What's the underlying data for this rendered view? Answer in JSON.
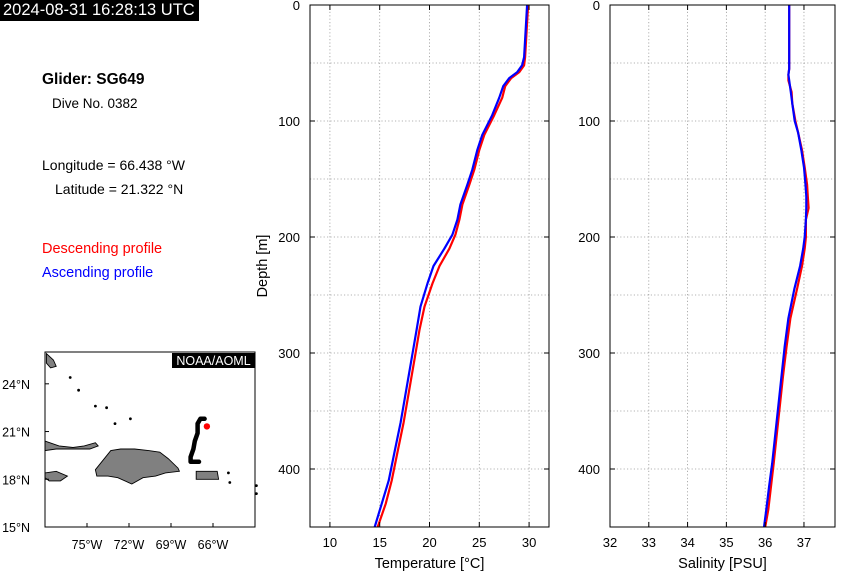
{
  "header": {
    "timestamp": "2024-08-31 16:28:13 UTC"
  },
  "info": {
    "glider": "Glider: SG649",
    "dive": "Dive No. 0382",
    "longitude": "Longitude = 66.438 °W",
    "latitude": "Latitude = 21.322 °N"
  },
  "legend": {
    "descending": {
      "label": "Descending profile",
      "color": "#ff0000"
    },
    "ascending": {
      "label": "Ascending profile",
      "color": "#0000ff"
    }
  },
  "map": {
    "badge": "NOAA/AOML",
    "lon_ticks": [
      "75°W",
      "72°W",
      "69°W",
      "66°W"
    ],
    "lat_ticks": [
      "24°N",
      "21°N",
      "18°N",
      "15°N"
    ],
    "lon_values": [
      -75,
      -72,
      -69,
      -66
    ],
    "lat_values": [
      24,
      21,
      18,
      15
    ],
    "lon_range": [
      -78,
      -63
    ],
    "lat_range": [
      15,
      26
    ],
    "land_color": "#808080",
    "track_color": "#000000",
    "track": [
      [
        -66.6,
        21.8
      ],
      [
        -66.9,
        21.8
      ],
      [
        -67.1,
        21.5
      ],
      [
        -67.1,
        20.9
      ],
      [
        -67.3,
        20.4
      ],
      [
        -67.4,
        19.9
      ],
      [
        -67.6,
        19.4
      ],
      [
        -67.6,
        19.1
      ],
      [
        -67.0,
        19.1
      ]
    ],
    "glider_position": [
      -66.438,
      21.322
    ],
    "position_color": "#ff0000"
  },
  "chart_data": [
    {
      "type": "line",
      "xlabel": "Temperature [°C]",
      "ylabel": "Depth [m]",
      "xlim": [
        8,
        32
      ],
      "ylim": [
        0,
        450
      ],
      "y_inverted": true,
      "xticks": [
        "10",
        "15",
        "20",
        "25",
        "30"
      ],
      "yticks": [
        "0",
        "100",
        "200",
        "300",
        "400"
      ],
      "grid": true,
      "series": [
        {
          "name": "Descending profile",
          "color": "#ff0000",
          "x": [
            29.9,
            29.8,
            29.7,
            29.6,
            29.5,
            29.0,
            28.2,
            27.6,
            27.3,
            26.5,
            25.5,
            25.0,
            24.5,
            24.0,
            23.3,
            23.0,
            22.6,
            22.0,
            21.0,
            20.3,
            19.5,
            19.0,
            18.6,
            18.2,
            17.8,
            17.4,
            16.8,
            16.2,
            15.6,
            14.8
          ],
          "y": [
            0,
            15,
            30,
            45,
            52,
            58,
            63,
            70,
            80,
            95,
            112,
            125,
            142,
            155,
            172,
            185,
            198,
            210,
            225,
            240,
            260,
            280,
            300,
            320,
            340,
            360,
            385,
            410,
            430,
            450
          ]
        },
        {
          "name": "Ascending profile",
          "color": "#0000ff",
          "x": [
            29.8,
            29.7,
            29.6,
            29.5,
            29.3,
            28.8,
            28.0,
            27.4,
            27.0,
            26.3,
            25.3,
            24.8,
            24.3,
            23.8,
            23.1,
            22.8,
            22.3,
            21.5,
            20.4,
            19.8,
            19.1,
            18.7,
            18.3,
            17.9,
            17.5,
            17.1,
            16.5,
            15.9,
            15.2,
            14.5
          ],
          "y": [
            0,
            15,
            30,
            45,
            52,
            58,
            63,
            70,
            80,
            95,
            112,
            125,
            142,
            155,
            172,
            185,
            198,
            210,
            225,
            240,
            260,
            280,
            300,
            320,
            340,
            360,
            385,
            410,
            430,
            450
          ]
        }
      ]
    },
    {
      "type": "line",
      "xlabel": "Salinity [PSU]",
      "ylabel": "",
      "xlim": [
        32,
        37.8
      ],
      "ylim": [
        0,
        450
      ],
      "y_inverted": true,
      "xticks": [
        "32",
        "33",
        "34",
        "35",
        "36",
        "37"
      ],
      "yticks": [
        "0",
        "100",
        "200",
        "300",
        "400"
      ],
      "grid": true,
      "series": [
        {
          "name": "Descending profile",
          "color": "#ff0000",
          "x": [
            36.62,
            36.62,
            36.62,
            36.62,
            36.6,
            36.6,
            36.68,
            36.7,
            36.78,
            36.85,
            36.95,
            37.02,
            37.08,
            37.1,
            37.12,
            37.05,
            37.05,
            37.02,
            36.95,
            36.82,
            36.65,
            36.55,
            36.46,
            36.38,
            36.3,
            36.22,
            36.15,
            36.08,
            36.0
          ],
          "y": [
            0,
            20,
            40,
            55,
            60,
            65,
            75,
            85,
            100,
            110,
            125,
            140,
            155,
            165,
            175,
            185,
            200,
            210,
            225,
            245,
            270,
            295,
            320,
            345,
            370,
            395,
            415,
            435,
            450
          ]
        },
        {
          "name": "Ascending profile",
          "color": "#0000ff",
          "x": [
            36.62,
            36.62,
            36.62,
            36.62,
            36.6,
            36.62,
            36.66,
            36.7,
            36.76,
            36.85,
            36.93,
            37.0,
            37.04,
            37.06,
            37.06,
            37.05,
            37.02,
            36.98,
            36.9,
            36.75,
            36.6,
            36.5,
            36.42,
            36.34,
            36.26,
            36.18,
            36.1,
            36.03,
            35.97
          ],
          "y": [
            0,
            20,
            40,
            55,
            60,
            65,
            75,
            85,
            100,
            110,
            125,
            140,
            155,
            165,
            175,
            185,
            200,
            210,
            225,
            245,
            270,
            295,
            320,
            345,
            370,
            395,
            415,
            435,
            450
          ]
        }
      ]
    }
  ]
}
